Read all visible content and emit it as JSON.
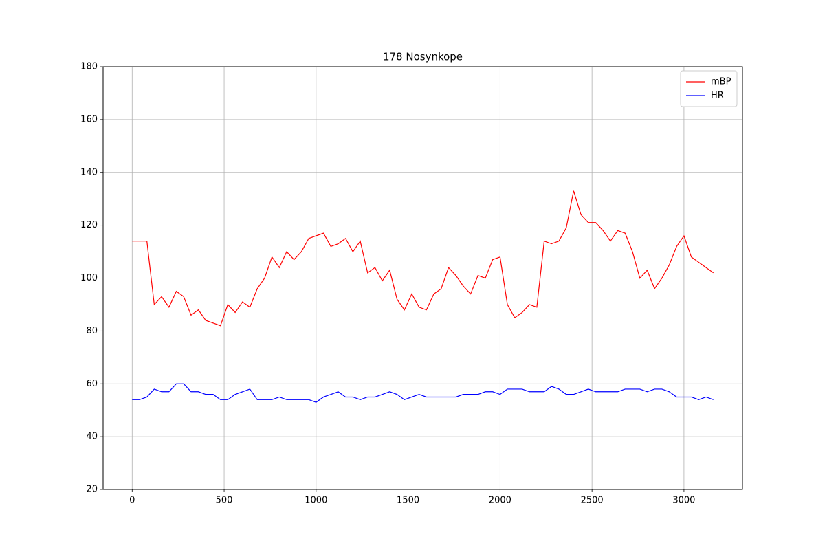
{
  "chart_data": {
    "type": "line",
    "title": "178 Nosynkope",
    "x": [
      0,
      40,
      80,
      120,
      160,
      200,
      240,
      280,
      320,
      360,
      400,
      440,
      480,
      520,
      560,
      600,
      640,
      680,
      720,
      760,
      800,
      840,
      880,
      920,
      960,
      1000,
      1040,
      1080,
      1120,
      1160,
      1200,
      1240,
      1280,
      1320,
      1360,
      1400,
      1440,
      1480,
      1520,
      1560,
      1600,
      1640,
      1680,
      1720,
      1760,
      1800,
      1840,
      1880,
      1920,
      1960,
      2000,
      2040,
      2080,
      2120,
      2160,
      2200,
      2240,
      2280,
      2320,
      2360,
      2400,
      2440,
      2480,
      2520,
      2560,
      2600,
      2640,
      2680,
      2720,
      2760,
      2800,
      2840,
      2880,
      2920,
      2960,
      3000,
      3040,
      3080,
      3120,
      3160
    ],
    "series": [
      {
        "name": "mBP",
        "color": "#ff0000",
        "values": [
          114,
          114,
          114,
          90,
          93,
          89,
          95,
          93,
          86,
          88,
          84,
          83,
          82,
          90,
          87,
          91,
          89,
          96,
          100,
          108,
          104,
          110,
          107,
          110,
          115,
          116,
          117,
          112,
          113,
          115,
          110,
          114,
          102,
          104,
          99,
          103,
          92,
          88,
          94,
          89,
          88,
          94,
          96,
          104,
          101,
          97,
          94,
          101,
          100,
          107,
          108,
          90,
          85,
          87,
          90,
          89,
          114,
          113,
          114,
          119,
          133,
          124,
          121,
          121,
          118,
          114,
          118,
          117,
          110,
          100,
          103,
          96,
          100,
          105,
          112,
          116,
          108,
          106,
          104,
          102
        ]
      },
      {
        "name": "HR",
        "color": "#0000ff",
        "values": [
          54,
          54,
          55,
          58,
          57,
          57,
          60,
          60,
          57,
          57,
          56,
          56,
          54,
          54,
          56,
          57,
          58,
          54,
          54,
          54,
          55,
          54,
          54,
          54,
          54,
          53,
          55,
          56,
          57,
          55,
          55,
          54,
          55,
          55,
          56,
          57,
          56,
          54,
          55,
          56,
          55,
          55,
          55,
          55,
          55,
          56,
          56,
          56,
          57,
          57,
          56,
          58,
          58,
          58,
          57,
          57,
          57,
          59,
          58,
          56,
          56,
          57,
          58,
          57,
          57,
          57,
          57,
          58,
          58,
          58,
          57,
          58,
          58,
          57,
          55,
          55,
          55,
          54,
          55,
          54
        ]
      }
    ],
    "xlim": [
      -158,
      3318
    ],
    "ylim": [
      20,
      180
    ],
    "xticks": [
      0,
      500,
      1000,
      1500,
      2000,
      2500,
      3000
    ],
    "yticks": [
      20,
      40,
      60,
      80,
      100,
      120,
      140,
      160,
      180
    ],
    "grid": true,
    "legend": "upper right"
  }
}
